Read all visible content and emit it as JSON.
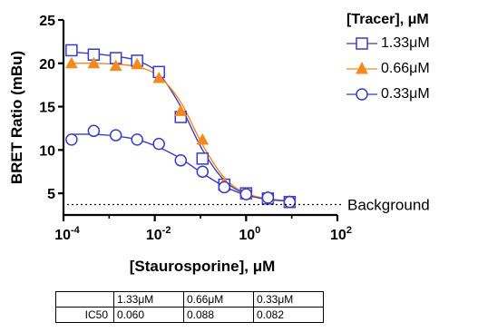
{
  "chart_data": {
    "type": "scatter",
    "title": "",
    "xlabel": "[Staurosporine], μM",
    "ylabel": "BRET Ratio (mBu)",
    "x_scale": "log10",
    "xlim": [
      0.0001,
      100
    ],
    "ylim": [
      2.5,
      25
    ],
    "x_ticks": [
      0.0001,
      0.01,
      1,
      100
    ],
    "x_tick_labels": [
      [
        "10",
        "-4"
      ],
      [
        "10",
        "-2"
      ],
      [
        "10",
        "0"
      ],
      [
        "10",
        "2"
      ]
    ],
    "y_ticks": [
      5,
      10,
      15,
      20,
      25
    ],
    "y_tick_labels": [
      "5",
      "10",
      "15",
      "20",
      "25"
    ],
    "grid": false,
    "legend_position": "top-right",
    "legend_title": "[Tracer], μM",
    "x": [
      0.00015,
      0.00046,
      0.0014,
      0.0041,
      0.0123,
      0.037,
      0.111,
      0.333,
      1.0,
      3.0,
      9.0
    ],
    "series": [
      {
        "name": "1.33μM",
        "color": "#3b3bc4",
        "marker": "square",
        "values": [
          21.5,
          21.0,
          20.6,
          20.3,
          19.0,
          13.8,
          9.0,
          6.0,
          5.0,
          4.4,
          4.0
        ],
        "fit": [
          21.3,
          21.1,
          20.8,
          20.3,
          18.8,
          15.0,
          10.0,
          6.5,
          4.9,
          4.3,
          4.1
        ]
      },
      {
        "name": "0.66μM",
        "color": "#f5891e",
        "marker": "triangle",
        "values": [
          20.0,
          20.0,
          19.7,
          19.9,
          18.3,
          14.5,
          11.2,
          6.2,
          5.0,
          4.6,
          4.1
        ],
        "fit": [
          20.0,
          20.0,
          19.9,
          19.6,
          18.5,
          15.5,
          10.6,
          6.8,
          5.0,
          4.4,
          4.1
        ]
      },
      {
        "name": "0.33μM",
        "color": "#3b3bc4",
        "marker": "circle",
        "values": [
          11.2,
          12.2,
          11.7,
          11.2,
          10.7,
          8.8,
          7.5,
          5.7,
          4.9,
          4.5,
          4.0
        ],
        "fit": [
          11.8,
          11.8,
          11.6,
          11.2,
          10.3,
          9.0,
          7.3,
          5.8,
          4.8,
          4.3,
          4.1
        ]
      }
    ],
    "background": {
      "label": "Background",
      "value": 3.7
    },
    "table": {
      "headers": [
        "",
        "1.33μM",
        "0.66μM",
        "0.33μM"
      ],
      "rows": [
        [
          "IC50",
          "0.060",
          "0.088",
          "0.082"
        ]
      ]
    }
  }
}
